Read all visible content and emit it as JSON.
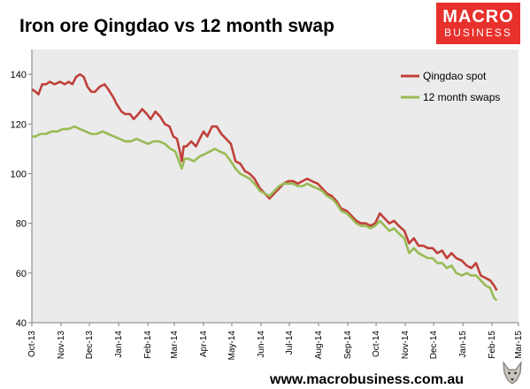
{
  "title": "Iron ore Qingdao vs 12 month swap",
  "logo": {
    "line1": "MACRO",
    "line2": "BUSINESS",
    "color": "#e8312c"
  },
  "footer": "www.macrobusiness.com.au",
  "chart_data": {
    "type": "line",
    "title": "Iron ore Qingdao vs 12 month swap",
    "xlabel": "",
    "ylabel": "",
    "ylim": [
      40,
      150
    ],
    "yticks": [
      40,
      60,
      80,
      100,
      120,
      140
    ],
    "xlim": [
      "2013-10-01",
      "2015-03-01"
    ],
    "xticks": [
      {
        "date": "2013-10-01",
        "label": "Oct-13"
      },
      {
        "date": "2013-11-01",
        "label": "Nov-13"
      },
      {
        "date": "2013-12-01",
        "label": "Dec-13"
      },
      {
        "date": "2014-01-01",
        "label": "Jan-14"
      },
      {
        "date": "2014-02-01",
        "label": "Feb-14"
      },
      {
        "date": "2014-03-01",
        "label": "Mar-14"
      },
      {
        "date": "2014-04-01",
        "label": "Apr-14"
      },
      {
        "date": "2014-05-01",
        "label": "May-14"
      },
      {
        "date": "2014-06-01",
        "label": "Jun-14"
      },
      {
        "date": "2014-07-01",
        "label": "Jul-14"
      },
      {
        "date": "2014-08-01",
        "label": "Aug-14"
      },
      {
        "date": "2014-09-01",
        "label": "Sep-14"
      },
      {
        "date": "2014-10-01",
        "label": "Oct-14"
      },
      {
        "date": "2014-11-01",
        "label": "Nov-14"
      },
      {
        "date": "2014-12-01",
        "label": "Dec-14"
      },
      {
        "date": "2015-01-01",
        "label": "Jan-15"
      },
      {
        "date": "2015-02-01",
        "label": "Feb-15"
      },
      {
        "date": "2015-03-01",
        "label": "Mar-15"
      }
    ],
    "grid": false,
    "legend": "top-right",
    "plot_background": "#ebebeb",
    "series": [
      {
        "name": "Qingdao spot",
        "color": "#c0403a",
        "points": [
          [
            "2013-10-01",
            134
          ],
          [
            "2013-10-05",
            133
          ],
          [
            "2013-10-08",
            132
          ],
          [
            "2013-10-12",
            136
          ],
          [
            "2013-10-16",
            136
          ],
          [
            "2013-10-20",
            137
          ],
          [
            "2013-10-25",
            136
          ],
          [
            "2013-10-31",
            137
          ],
          [
            "2013-11-05",
            136
          ],
          [
            "2013-11-09",
            137
          ],
          [
            "2013-11-13",
            136
          ],
          [
            "2013-11-17",
            139
          ],
          [
            "2013-11-21",
            140
          ],
          [
            "2013-11-25",
            139
          ],
          [
            "2013-11-29",
            135
          ],
          [
            "2013-12-03",
            133
          ],
          [
            "2013-12-07",
            133
          ],
          [
            "2013-12-12",
            135
          ],
          [
            "2013-12-17",
            136
          ],
          [
            "2013-12-21",
            134
          ],
          [
            "2013-12-26",
            131
          ],
          [
            "2013-12-30",
            128
          ],
          [
            "2014-01-04",
            125
          ],
          [
            "2014-01-08",
            124
          ],
          [
            "2014-01-13",
            124
          ],
          [
            "2014-01-17",
            122
          ],
          [
            "2014-01-22",
            124
          ],
          [
            "2014-01-26",
            126
          ],
          [
            "2014-01-31",
            124
          ],
          [
            "2014-02-04",
            122
          ],
          [
            "2014-02-09",
            125
          ],
          [
            "2014-02-14",
            123
          ],
          [
            "2014-02-19",
            120
          ],
          [
            "2014-02-24",
            119
          ],
          [
            "2014-02-28",
            115
          ],
          [
            "2014-03-04",
            114
          ],
          [
            "2014-03-07",
            109
          ],
          [
            "2014-03-09",
            105
          ],
          [
            "2014-03-11",
            111
          ],
          [
            "2014-03-14",
            111
          ],
          [
            "2014-03-19",
            113
          ],
          [
            "2014-03-24",
            111
          ],
          [
            "2014-03-28",
            114
          ],
          [
            "2014-04-01",
            117
          ],
          [
            "2014-04-05",
            115
          ],
          [
            "2014-04-10",
            119
          ],
          [
            "2014-04-15",
            119
          ],
          [
            "2014-04-20",
            116
          ],
          [
            "2014-04-25",
            114
          ],
          [
            "2014-04-30",
            112
          ],
          [
            "2014-05-05",
            105
          ],
          [
            "2014-05-10",
            104
          ],
          [
            "2014-05-15",
            101
          ],
          [
            "2014-05-20",
            100
          ],
          [
            "2014-05-25",
            98
          ],
          [
            "2014-05-31",
            94
          ],
          [
            "2014-06-05",
            92
          ],
          [
            "2014-06-10",
            90
          ],
          [
            "2014-06-15",
            92
          ],
          [
            "2014-06-20",
            94
          ],
          [
            "2014-06-25",
            96
          ],
          [
            "2014-06-30",
            97
          ],
          [
            "2014-07-05",
            97
          ],
          [
            "2014-07-10",
            96
          ],
          [
            "2014-07-15",
            97
          ],
          [
            "2014-07-20",
            98
          ],
          [
            "2014-07-25",
            97
          ],
          [
            "2014-07-31",
            96
          ],
          [
            "2014-08-05",
            94
          ],
          [
            "2014-08-10",
            92
          ],
          [
            "2014-08-15",
            91
          ],
          [
            "2014-08-20",
            89
          ],
          [
            "2014-08-25",
            86
          ],
          [
            "2014-08-31",
            85
          ],
          [
            "2014-09-05",
            83
          ],
          [
            "2014-09-10",
            81
          ],
          [
            "2014-09-15",
            80
          ],
          [
            "2014-09-20",
            80
          ],
          [
            "2014-09-25",
            79
          ],
          [
            "2014-09-30",
            80
          ],
          [
            "2014-10-05",
            84
          ],
          [
            "2014-10-10",
            82
          ],
          [
            "2014-10-15",
            80
          ],
          [
            "2014-10-20",
            81
          ],
          [
            "2014-10-25",
            79
          ],
          [
            "2014-10-31",
            77
          ],
          [
            "2014-11-05",
            72
          ],
          [
            "2014-11-10",
            74
          ],
          [
            "2014-11-15",
            71
          ],
          [
            "2014-11-20",
            71
          ],
          [
            "2014-11-25",
            70
          ],
          [
            "2014-11-30",
            70
          ],
          [
            "2014-12-05",
            68
          ],
          [
            "2014-12-10",
            69
          ],
          [
            "2014-12-15",
            66
          ],
          [
            "2014-12-20",
            68
          ],
          [
            "2014-12-25",
            66
          ],
          [
            "2014-12-31",
            65
          ],
          [
            "2015-01-05",
            63
          ],
          [
            "2015-01-10",
            62
          ],
          [
            "2015-01-15",
            64
          ],
          [
            "2015-01-20",
            59
          ],
          [
            "2015-01-25",
            58
          ],
          [
            "2015-01-30",
            57
          ],
          [
            "2015-02-03",
            55
          ],
          [
            "2015-02-06",
            53
          ]
        ]
      },
      {
        "name": "12 month swaps",
        "color": "#99bb55",
        "points": [
          [
            "2013-10-01",
            115
          ],
          [
            "2013-10-05",
            115
          ],
          [
            "2013-10-10",
            116
          ],
          [
            "2013-10-16",
            116
          ],
          [
            "2013-10-22",
            117
          ],
          [
            "2013-10-28",
            117
          ],
          [
            "2013-11-03",
            118
          ],
          [
            "2013-11-09",
            118
          ],
          [
            "2013-11-15",
            119
          ],
          [
            "2013-11-21",
            118
          ],
          [
            "2013-11-27",
            117
          ],
          [
            "2013-12-03",
            116
          ],
          [
            "2013-12-09",
            116
          ],
          [
            "2013-12-15",
            117
          ],
          [
            "2013-12-21",
            116
          ],
          [
            "2013-12-27",
            115
          ],
          [
            "2014-01-02",
            114
          ],
          [
            "2014-01-08",
            113
          ],
          [
            "2014-01-14",
            113
          ],
          [
            "2014-01-20",
            114
          ],
          [
            "2014-01-26",
            113
          ],
          [
            "2014-02-01",
            112
          ],
          [
            "2014-02-07",
            113
          ],
          [
            "2014-02-13",
            113
          ],
          [
            "2014-02-19",
            112
          ],
          [
            "2014-02-25",
            110
          ],
          [
            "2014-03-02",
            109
          ],
          [
            "2014-03-06",
            105
          ],
          [
            "2014-03-09",
            102
          ],
          [
            "2014-03-12",
            106
          ],
          [
            "2014-03-16",
            106
          ],
          [
            "2014-03-22",
            105
          ],
          [
            "2014-03-28",
            107
          ],
          [
            "2014-04-03",
            108
          ],
          [
            "2014-04-08",
            109
          ],
          [
            "2014-04-13",
            110
          ],
          [
            "2014-04-18",
            109
          ],
          [
            "2014-04-24",
            108
          ],
          [
            "2014-04-30",
            105
          ],
          [
            "2014-05-05",
            102
          ],
          [
            "2014-05-10",
            100
          ],
          [
            "2014-05-15",
            99
          ],
          [
            "2014-05-20",
            98
          ],
          [
            "2014-05-25",
            96
          ],
          [
            "2014-05-31",
            93
          ],
          [
            "2014-06-05",
            92
          ],
          [
            "2014-06-10",
            91
          ],
          [
            "2014-06-15",
            93
          ],
          [
            "2014-06-20",
            95
          ],
          [
            "2014-06-25",
            96
          ],
          [
            "2014-06-30",
            96
          ],
          [
            "2014-07-05",
            96
          ],
          [
            "2014-07-10",
            95
          ],
          [
            "2014-07-15",
            95
          ],
          [
            "2014-07-20",
            96
          ],
          [
            "2014-07-25",
            95
          ],
          [
            "2014-07-31",
            94
          ],
          [
            "2014-08-05",
            93
          ],
          [
            "2014-08-10",
            91
          ],
          [
            "2014-08-15",
            90
          ],
          [
            "2014-08-20",
            88
          ],
          [
            "2014-08-25",
            85
          ],
          [
            "2014-08-31",
            84
          ],
          [
            "2014-09-05",
            82
          ],
          [
            "2014-09-10",
            80
          ],
          [
            "2014-09-15",
            79
          ],
          [
            "2014-09-20",
            79
          ],
          [
            "2014-09-25",
            78
          ],
          [
            "2014-09-30",
            79
          ],
          [
            "2014-10-05",
            81
          ],
          [
            "2014-10-10",
            79
          ],
          [
            "2014-10-15",
            77
          ],
          [
            "2014-10-20",
            78
          ],
          [
            "2014-10-25",
            76
          ],
          [
            "2014-10-31",
            74
          ],
          [
            "2014-11-05",
            68
          ],
          [
            "2014-11-10",
            70
          ],
          [
            "2014-11-15",
            68
          ],
          [
            "2014-11-20",
            67
          ],
          [
            "2014-11-25",
            66
          ],
          [
            "2014-11-30",
            66
          ],
          [
            "2014-12-05",
            64
          ],
          [
            "2014-12-10",
            64
          ],
          [
            "2014-12-15",
            62
          ],
          [
            "2014-12-20",
            63
          ],
          [
            "2014-12-25",
            60
          ],
          [
            "2014-12-31",
            59
          ],
          [
            "2015-01-05",
            60
          ],
          [
            "2015-01-10",
            59
          ],
          [
            "2015-01-15",
            59
          ],
          [
            "2015-01-20",
            57
          ],
          [
            "2015-01-25",
            55
          ],
          [
            "2015-01-30",
            54
          ],
          [
            "2015-02-03",
            50
          ],
          [
            "2015-02-06",
            49
          ]
        ]
      }
    ]
  }
}
